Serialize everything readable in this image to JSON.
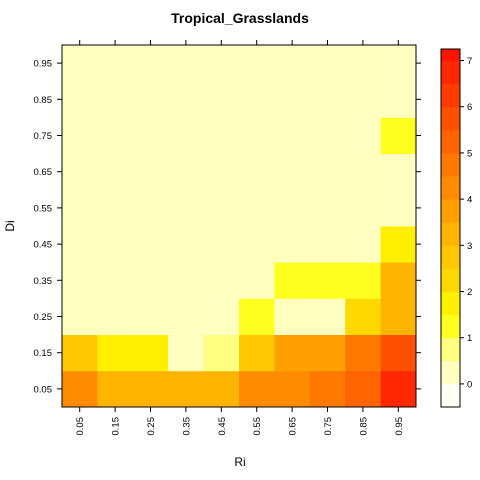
{
  "chart_data": {
    "type": "heatmap",
    "title": "Tropical_Grasslands",
    "xlabel": "Ri",
    "ylabel": "Di",
    "x_centers": [
      0.05,
      0.15,
      0.25,
      0.35,
      0.45,
      0.55,
      0.65,
      0.75,
      0.85,
      0.95
    ],
    "y_centers": [
      0.05,
      0.15,
      0.25,
      0.35,
      0.45,
      0.55,
      0.65,
      0.75,
      0.85,
      0.95
    ],
    "x_tick_labels": [
      "0.05",
      "0.15",
      "0.25",
      "0.35",
      "0.45",
      "0.55",
      "0.65",
      "0.75",
      "0.85",
      "0.95"
    ],
    "y_tick_labels": [
      "0.05",
      "0.15",
      "0.25",
      "0.35",
      "0.45",
      "0.55",
      "0.65",
      "0.75",
      "0.85",
      "0.95"
    ],
    "xlim": [
      0,
      1
    ],
    "ylim": [
      0,
      1
    ],
    "values": [
      [
        4.0,
        3.0,
        3.3,
        3.0,
        3.2,
        4.0,
        4.3,
        4.6,
        5.3,
        6.8
      ],
      [
        2.5,
        1.5,
        1.5,
        0.0,
        0.6,
        2.5,
        3.5,
        3.6,
        4.5,
        5.5
      ],
      [
        0.02,
        0.02,
        0.05,
        0.0,
        0.05,
        1.2,
        0.0,
        0.0,
        2.0,
        3.0
      ],
      [
        0.0,
        0.0,
        0.05,
        0.0,
        0.0,
        0.02,
        1.2,
        1.2,
        1.2,
        3.0
      ],
      [
        0.0,
        0.0,
        0.0,
        0.0,
        0.05,
        0.0,
        0.0,
        0.0,
        0.0,
        1.5
      ],
      [
        0.05,
        0.0,
        0.0,
        0.0,
        0.0,
        0.0,
        0.0,
        0.05,
        0.0,
        0.0
      ],
      [
        0.0,
        0.0,
        0.0,
        0.0,
        0.0,
        0.0,
        0.0,
        0.05,
        0.4,
        0.4
      ],
      [
        0.0,
        0.0,
        0.0,
        0.0,
        0.0,
        0.0,
        0.0,
        0.0,
        0.02,
        1.2
      ],
      [
        0.0,
        0.0,
        0.0,
        0.0,
        0.0,
        0.0,
        0.0,
        0.0,
        0.0,
        0.0
      ],
      [
        0.0,
        0.0,
        0.0,
        0.05,
        0.0,
        0.0,
        0.0,
        0.0,
        0.0,
        0.05
      ]
    ],
    "colorbar": {
      "min": -0.5,
      "max": 7.25,
      "ticks": [
        0,
        1,
        2,
        3,
        4,
        5,
        6,
        7
      ],
      "tick_labels": [
        "0",
        "1",
        "2",
        "3",
        "4",
        "5",
        "6",
        "7"
      ],
      "step": 0.5
    },
    "grid": false,
    "legend": "colorbar-right"
  }
}
